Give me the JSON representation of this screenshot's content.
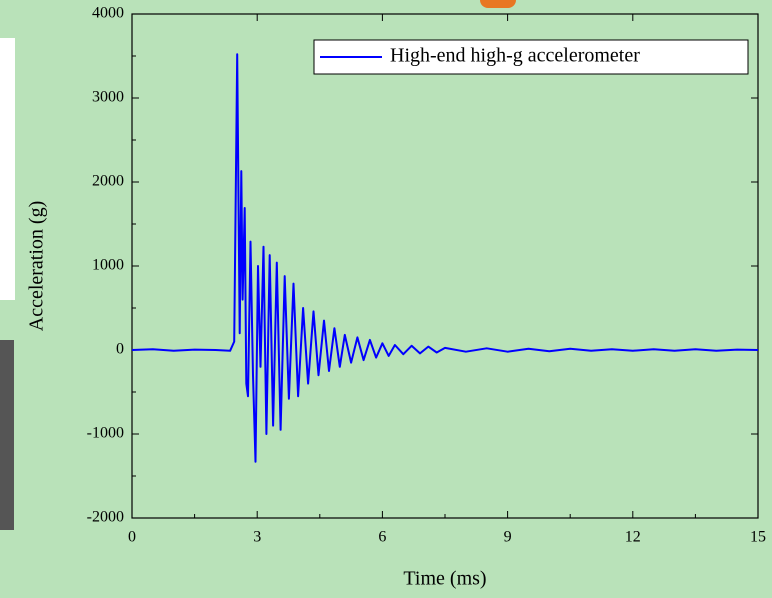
{
  "chart_data": {
    "type": "line",
    "x_label": "Time (ms)",
    "y_label": "Acceleration (g)",
    "x": [
      0,
      0.5,
      1,
      1.5,
      2,
      2.35,
      2.45,
      2.52,
      2.58,
      2.62,
      2.65,
      2.7,
      2.74,
      2.78,
      2.84,
      2.9,
      2.96,
      3.02,
      3.08,
      3.15,
      3.22,
      3.3,
      3.38,
      3.47,
      3.56,
      3.66,
      3.76,
      3.87,
      3.98,
      4.1,
      4.22,
      4.35,
      4.47,
      4.6,
      4.72,
      4.85,
      4.98,
      5.1,
      5.25,
      5.4,
      5.55,
      5.7,
      5.85,
      6,
      6.15,
      6.3,
      6.5,
      6.7,
      6.9,
      7.1,
      7.3,
      7.5,
      8,
      8.5,
      9,
      9.5,
      10,
      10.5,
      11,
      11.5,
      12,
      12.5,
      13,
      13.5,
      14,
      14.5,
      15
    ],
    "series": [
      {
        "name": "High-end high-g accelerometer",
        "color": "#0000ff",
        "values": [
          0,
          10,
          -10,
          5,
          0,
          -10,
          100,
          3520,
          200,
          2130,
          600,
          1690,
          -400,
          -550,
          1290,
          -300,
          -1330,
          1000,
          -200,
          1230,
          -1000,
          1130,
          -900,
          1040,
          -950,
          880,
          -580,
          790,
          -550,
          500,
          -400,
          460,
          -300,
          350,
          -250,
          260,
          -200,
          180,
          -150,
          150,
          -120,
          120,
          -90,
          80,
          -70,
          60,
          -50,
          50,
          -40,
          40,
          -30,
          25,
          -20,
          20,
          -20,
          15,
          -15,
          15,
          -10,
          10,
          -10,
          10,
          -10,
          10,
          -10,
          5,
          0
        ]
      }
    ],
    "xlim": [
      0,
      15
    ],
    "xticks": [
      0,
      3,
      6,
      9,
      12,
      15
    ],
    "ylim": [
      -2000,
      4000
    ],
    "yticks": [
      -2000,
      -1000,
      0,
      1000,
      2000,
      3000,
      4000
    ]
  }
}
